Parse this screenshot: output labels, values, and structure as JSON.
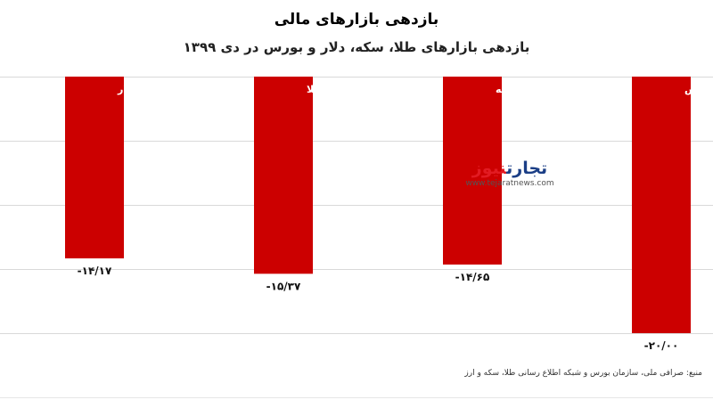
{
  "chart_data": {
    "type": "bar",
    "title": "بازدهی بازارهای مالی",
    "subtitle": "بازدهی بازارهای طلا، سکه، دلار و بورس در دی ۱۳۹۹",
    "categories": [
      "دلار",
      "طلا",
      "سکه",
      "بورس"
    ],
    "values": [
      -14.17,
      -15.37,
      -14.65,
      -20.0
    ],
    "value_labels": [
      "-۱۴/۱۷",
      "-۱۵/۳۷",
      "-۱۴/۶۵",
      "-۲۰/۰۰"
    ],
    "ylim": [
      -20,
      0
    ],
    "grid": true,
    "bar_color": "#cc0000"
  },
  "watermark": {
    "name_part1": "تجارت",
    "name_part2": "نیوز",
    "url": "www.tejaratnews.com"
  },
  "source": "منبع: صرافی ملی، سازمان بورس و شبکه اطلاع رسانی طلا، سکه و ارز"
}
